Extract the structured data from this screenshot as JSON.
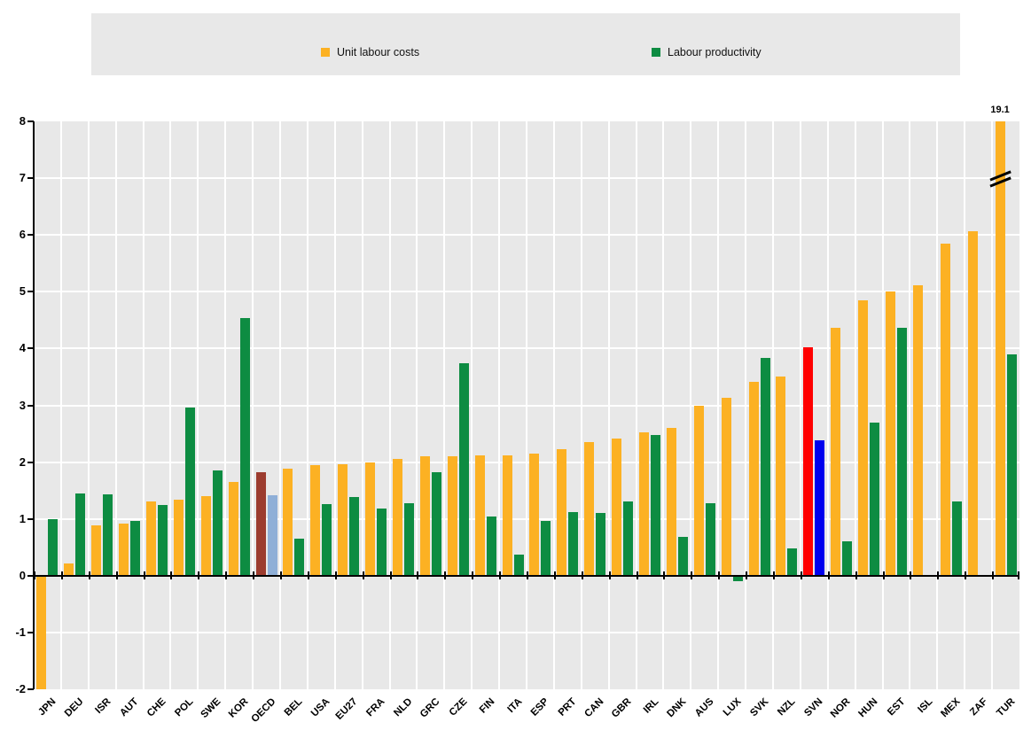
{
  "legend": {
    "background": "#e8e8e8",
    "items": [
      {
        "label": "Unit labour costs",
        "color": "#FCB123"
      },
      {
        "label": "Labour productivity",
        "color": "#0D8C42"
      }
    ]
  },
  "chart_data": {
    "type": "bar",
    "title": "",
    "xlabel": "",
    "ylabel": "",
    "ylim": [
      -2,
      8
    ],
    "yticks": [
      8,
      7,
      6,
      5,
      4,
      3,
      2,
      1,
      0,
      -1,
      -2
    ],
    "grid": true,
    "plot_background": "#e8e8e8",
    "gridline_color": "#ffffff",
    "legend_position": "top",
    "categories": [
      "JPN",
      "DEU",
      "ISR",
      "AUT",
      "CHE",
      "POL",
      "SWE",
      "KOR",
      "OECD",
      "BEL",
      "USA",
      "EU27",
      "FRA",
      "NLD",
      "GRC",
      "CZE",
      "FIN",
      "ITA",
      "ESP",
      "PRT",
      "CAN",
      "GBR",
      "IRL",
      "DNK",
      "AUS",
      "LUX",
      "SVK",
      "NZL",
      "SVN",
      "NOR",
      "HUN",
      "EST",
      "ISL",
      "MEX",
      "ZAF",
      "TUR"
    ],
    "series": [
      {
        "name": "Unit labour costs",
        "color": "#FCB123",
        "values": [
          -2.0,
          0.22,
          0.88,
          0.91,
          1.3,
          1.34,
          1.4,
          1.65,
          1.82,
          1.89,
          1.94,
          1.97,
          1.99,
          2.06,
          2.1,
          2.1,
          2.12,
          2.12,
          2.15,
          2.22,
          2.35,
          2.42,
          2.52,
          2.6,
          3.0,
          3.14,
          3.41,
          3.5,
          4.02,
          4.36,
          4.85,
          5.0,
          5.11,
          5.84,
          6.07,
          19.1
        ]
      },
      {
        "name": "Labour productivity",
        "color": "#0D8C42",
        "values": [
          1.0,
          1.44,
          1.43,
          0.97,
          1.24,
          2.96,
          1.85,
          4.53,
          1.41,
          0.65,
          1.26,
          1.38,
          1.18,
          1.28,
          1.82,
          3.74,
          1.04,
          0.37,
          0.97,
          1.12,
          1.1,
          1.31,
          2.48,
          0.68,
          1.28,
          -0.1,
          3.84,
          0.48,
          2.39,
          0.61,
          2.69,
          4.37,
          null,
          1.31,
          null,
          3.9
        ]
      }
    ],
    "special_bar_colors": {
      "OECD": {
        "ulc": "#9C3C2F",
        "productivity": "#8FAFD7"
      },
      "SVN": {
        "ulc": "#FF0000",
        "productivity": "#0000EE"
      }
    },
    "annotations": [
      {
        "category": "TUR",
        "series": "Unit labour costs",
        "text": "19.1",
        "note": "bar clipped at axis top with break mark"
      }
    ]
  }
}
